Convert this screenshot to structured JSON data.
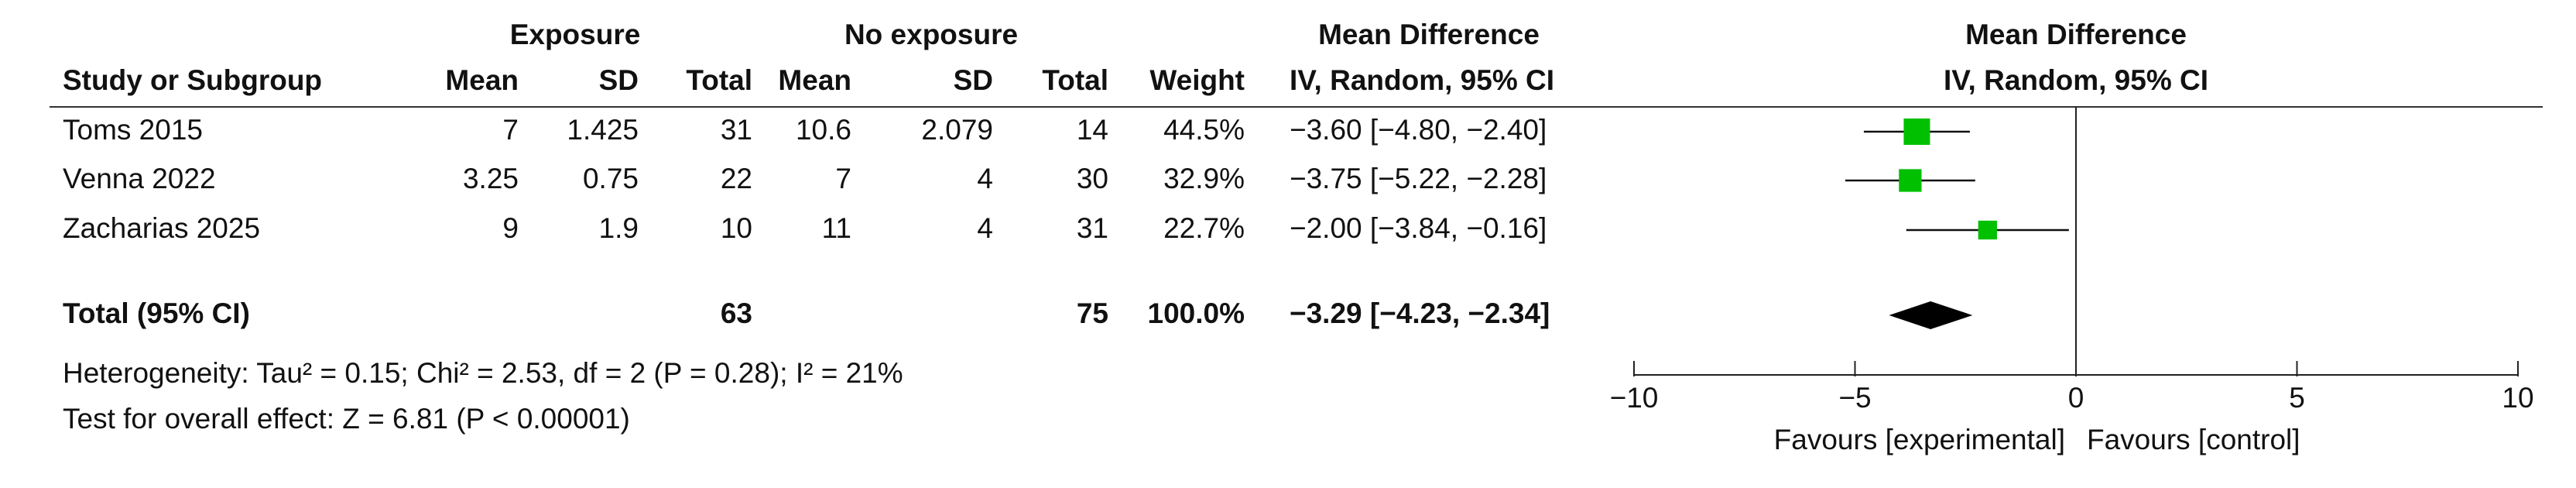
{
  "chart_data": {
    "type": "forest",
    "headers": {
      "group": [
        "Exposure",
        "No exposure",
        "Mean Difference"
      ],
      "columns": [
        "Study or Subgroup",
        "Mean",
        "SD",
        "Total",
        "Mean",
        "SD",
        "Total",
        "Weight",
        "IV, Random, 95% CI"
      ],
      "plot": [
        "Mean Difference",
        "IV, Random, 95% CI"
      ]
    },
    "studies": [
      {
        "name": "Toms 2015",
        "exp_mean": 7,
        "exp_sd": 1.425,
        "exp_total": 31,
        "ctl_mean": 10.6,
        "ctl_sd": 2.079,
        "ctl_total": 14,
        "weight": 44.5,
        "weight_label": "44.5%",
        "md": -3.6,
        "ci_low": -4.8,
        "ci_high": -2.4,
        "ci_label": "−3.60 [−4.80, −2.40]"
      },
      {
        "name": "Venna 2022",
        "exp_mean": 3.25,
        "exp_sd": 0.75,
        "exp_total": 22,
        "ctl_mean": 7,
        "ctl_sd": 4,
        "ctl_total": 30,
        "weight": 32.9,
        "weight_label": "32.9%",
        "md": -3.75,
        "ci_low": -5.22,
        "ci_high": -2.28,
        "ci_label": "−3.75 [−5.22, −2.28]"
      },
      {
        "name": "Zacharias 2025",
        "exp_mean": 9,
        "exp_sd": 1.9,
        "exp_total": 10,
        "ctl_mean": 11,
        "ctl_sd": 4,
        "ctl_total": 31,
        "weight": 22.7,
        "weight_label": "22.7%",
        "md": -2.0,
        "ci_low": -3.84,
        "ci_high": -0.16,
        "ci_label": "−2.00 [−3.84, −0.16]"
      }
    ],
    "total": {
      "name": "Total (95% CI)",
      "exp_total": 63,
      "ctl_total": 75,
      "weight": 100,
      "weight_label": "100.0%",
      "md": -3.29,
      "ci_low": -4.23,
      "ci_high": -2.34,
      "ci_label": "−3.29 [−4.23, −2.34]"
    },
    "heterogeneity": "Heterogeneity: Tau² = 0.15; Chi² = 2.53, df = 2 (P = 0.28); I² = 21%",
    "overall_effect": "Test for overall effect: Z = 6.81 (P < 0.00001)",
    "xlim": [
      -10,
      10
    ],
    "xticks": [
      {
        "value": -10,
        "label": "−10"
      },
      {
        "value": -5,
        "label": "−5"
      },
      0,
      5,
      10
    ],
    "xlabels": [
      "Favours [experimental]",
      "Favours [control]"
    ],
    "square_color": "#00c000",
    "diamond_color": "#000000"
  }
}
